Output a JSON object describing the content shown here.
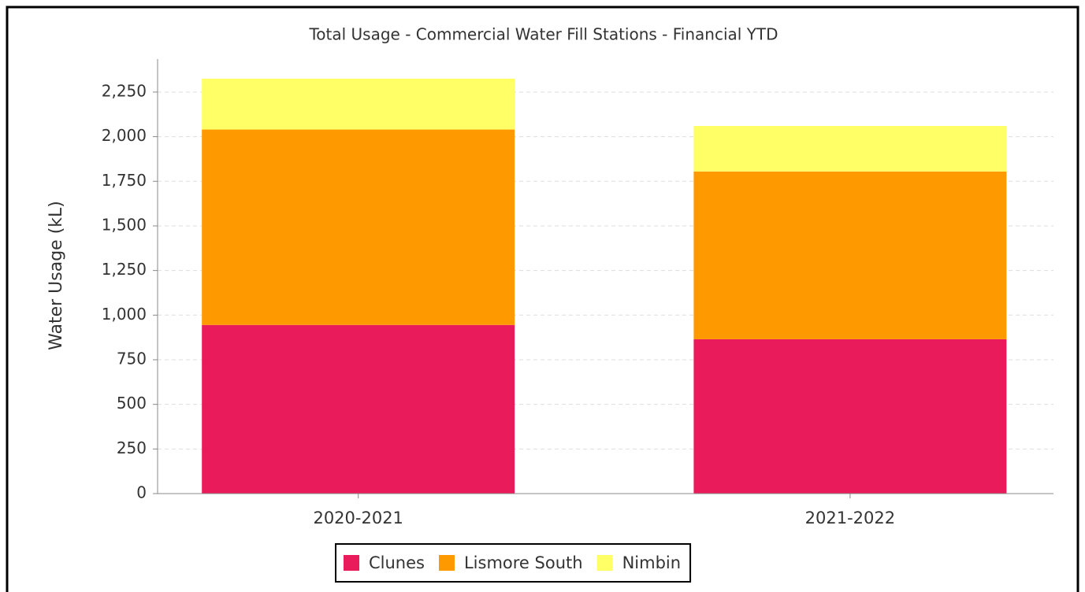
{
  "chart_data": {
    "type": "stacked_bar",
    "title": "Total Usage - Commercial Water Fill Stations - Financial YTD",
    "y_label": "Water Usage (kL)",
    "categories": [
      "2020-2021",
      "2021-2022"
    ],
    "series": [
      {
        "name": "Clunes",
        "color": "#e91b5a",
        "values": [
          945,
          865
        ]
      },
      {
        "name": "Lismore South",
        "color": "#ff9900",
        "values": [
          1095,
          940
        ]
      },
      {
        "name": "Nimbin",
        "color": "#ffff66",
        "values": [
          285,
          255
        ]
      }
    ],
    "ylim": [
      0,
      2435
    ],
    "yticks": [
      0,
      250,
      500,
      750,
      {
        "value": 1000,
        "label": "1,000"
      },
      {
        "value": 1250,
        "label": "1,250"
      },
      {
        "value": 1500,
        "label": "1,500"
      },
      {
        "value": 1750,
        "label": "1,750"
      },
      {
        "value": 2000,
        "label": "2,000"
      },
      {
        "value": 2250,
        "label": "2,250"
      }
    ],
    "grid": true,
    "legend": "bottom"
  }
}
